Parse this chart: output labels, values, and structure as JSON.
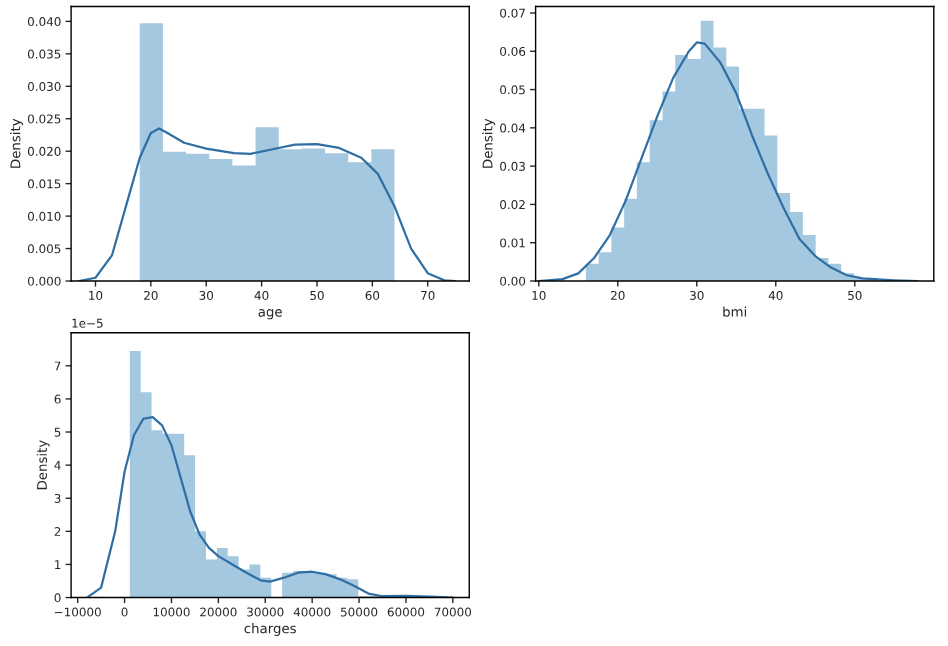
{
  "chart_data": [
    {
      "type": "histogram",
      "xlabel": "age",
      "ylabel": "Density",
      "color": "#a5c8e1",
      "bins": [
        18,
        22.18,
        26.36,
        30.55,
        34.73,
        38.91,
        43.09,
        47.27,
        51.45,
        55.64,
        59.82,
        64
      ],
      "values": [
        0.0397,
        0.0199,
        0.0196,
        0.0188,
        0.0178,
        0.0237,
        0.0203,
        0.0204,
        0.0197,
        0.0183,
        0.0203
      ],
      "series": [
        {
          "type": "line",
          "color": "#2f6fa3",
          "x": [
            7,
            10,
            13,
            16,
            18,
            20,
            21.5,
            23,
            26,
            30,
            35,
            38,
            42,
            46,
            50,
            54,
            58,
            61,
            64,
            67,
            70,
            73,
            75
          ],
          "values": [
            0,
            0.0005,
            0.004,
            0.013,
            0.019,
            0.0228,
            0.0235,
            0.0228,
            0.0213,
            0.0204,
            0.0197,
            0.0196,
            0.0203,
            0.021,
            0.0211,
            0.0205,
            0.019,
            0.0165,
            0.0115,
            0.005,
            0.0012,
            0.0001,
            0
          ]
        }
      ],
      "xlim": [
        5.6,
        77.5
      ],
      "xticks": [
        10,
        20,
        30,
        40,
        50,
        60,
        70
      ],
      "ylim": [
        0,
        0.0423
      ],
      "yticks": [
        {
          "value": 0,
          "label": "0.000"
        },
        {
          "value": 0.005,
          "label": "0.005"
        },
        {
          "value": 0.01,
          "label": "0.010"
        },
        {
          "value": 0.015,
          "label": "0.015"
        },
        {
          "value": 0.02,
          "label": "0.020"
        },
        {
          "value": 0.025,
          "label": "0.025"
        },
        {
          "value": 0.03,
          "label": "0.030"
        },
        {
          "value": 0.035,
          "label": "0.035"
        },
        {
          "value": 0.04,
          "label": "0.040"
        }
      ],
      "grid": false,
      "legend": false
    },
    {
      "type": "histogram",
      "xlabel": "bmi",
      "ylabel": "Density",
      "color": "#a5c8e1",
      "bins": [
        15.96,
        17.58,
        19.19,
        20.81,
        22.42,
        24.04,
        25.66,
        27.27,
        28.89,
        30.5,
        32.12,
        33.74,
        35.35,
        36.97,
        38.58,
        40.2,
        41.82,
        43.43,
        45.05,
        46.66,
        48.28,
        49.9,
        51.51,
        53.13
      ],
      "values": [
        0.0045,
        0.0075,
        0.014,
        0.0215,
        0.031,
        0.042,
        0.0495,
        0.059,
        0.058,
        0.068,
        0.061,
        0.056,
        0.045,
        0.045,
        0.038,
        0.023,
        0.018,
        0.012,
        0.006,
        0.0045,
        0.002,
        0.0008,
        0.0005
      ],
      "series": [
        {
          "type": "line",
          "color": "#2f6fa3",
          "x": [
            10,
            13,
            15,
            17,
            19,
            21,
            23,
            25,
            27,
            29,
            30,
            31,
            33,
            35,
            37,
            39,
            41,
            43,
            45,
            47,
            49,
            51,
            53,
            55,
            58
          ],
          "values": [
            0,
            0.0005,
            0.002,
            0.006,
            0.012,
            0.021,
            0.032,
            0.043,
            0.053,
            0.06,
            0.0623,
            0.062,
            0.057,
            0.049,
            0.038,
            0.028,
            0.019,
            0.011,
            0.0065,
            0.0035,
            0.0015,
            0.0007,
            0.0004,
            0.0002,
            0
          ]
        }
      ],
      "xlim": [
        9.6,
        60
      ],
      "xticks": [
        10,
        20,
        30,
        40,
        50
      ],
      "ylim": [
        0,
        0.0717
      ],
      "yticks": [
        {
          "value": 0,
          "label": "0.00"
        },
        {
          "value": 0.01,
          "label": "0.01"
        },
        {
          "value": 0.02,
          "label": "0.02"
        },
        {
          "value": 0.03,
          "label": "0.03"
        },
        {
          "value": 0.04,
          "label": "0.04"
        },
        {
          "value": 0.05,
          "label": "0.05"
        },
        {
          "value": 0.06,
          "label": "0.06"
        },
        {
          "value": 0.07,
          "label": "0.07"
        }
      ],
      "grid": false,
      "legend": false
    },
    {
      "type": "histogram",
      "xlabel": "charges",
      "ylabel": "Density",
      "color": "#a5c8e1",
      "annotations": [
        "1e−5"
      ],
      "bins": [
        1121,
        3441,
        5761,
        8081,
        10401,
        12721,
        15041,
        17361,
        19681,
        22001,
        24321,
        26641,
        28961,
        31281,
        33601,
        35921,
        38241,
        40561,
        42881,
        45201,
        47521,
        49841,
        52161,
        54481,
        56801,
        59121,
        61441,
        63761
      ],
      "values": [
        7.45,
        6.2,
        5.05,
        4.95,
        4.95,
        4.3,
        2.0,
        1.15,
        1.5,
        1.25,
        0.85,
        1.0,
        0.6,
        0,
        0.75,
        0.8,
        0.8,
        0.75,
        0.7,
        0.6,
        0.55,
        0.05,
        0.05,
        0.03,
        0.03,
        0.02,
        0.04
      ],
      "series": [
        {
          "type": "line",
          "color": "#2f6fa3",
          "x": [
            -8000,
            -5000,
            -2000,
            0,
            2000,
            4000,
            6000,
            8000,
            10000,
            12000,
            14000,
            16000,
            18000,
            20000,
            23000,
            26000,
            29000,
            31000,
            34000,
            37000,
            40000,
            43000,
            46000,
            49000,
            52000,
            55000,
            60000,
            65000,
            70000
          ],
          "values": [
            0,
            0.3,
            2.0,
            3.8,
            4.9,
            5.4,
            5.45,
            5.2,
            4.6,
            3.6,
            2.6,
            1.9,
            1.5,
            1.25,
            1.0,
            0.75,
            0.52,
            0.48,
            0.6,
            0.75,
            0.78,
            0.7,
            0.55,
            0.35,
            0.12,
            0.04,
            0.05,
            0.03,
            0
          ]
        }
      ],
      "xlim": [
        -11400,
        73500
      ],
      "xticks": [
        {
          "value": -10000,
          "label": "−10000"
        },
        0,
        10000,
        20000,
        30000,
        40000,
        50000,
        60000,
        70000
      ],
      "ylim": [
        0,
        8.0
      ],
      "yticks": [
        0,
        1,
        2,
        3,
        4,
        5,
        6,
        7
      ],
      "grid": false,
      "legend": false
    }
  ]
}
